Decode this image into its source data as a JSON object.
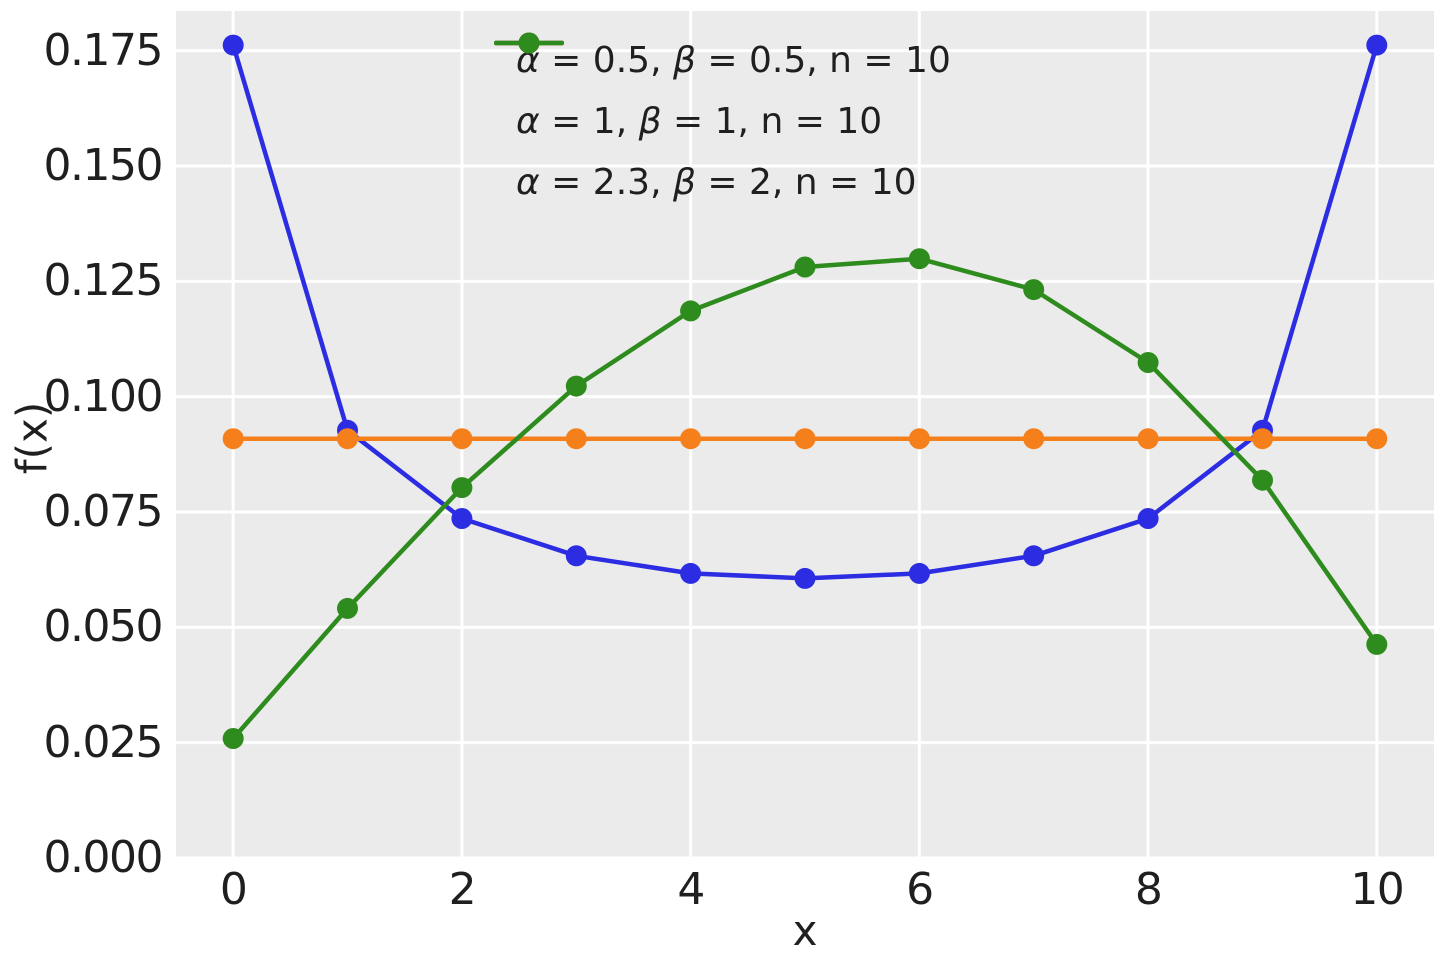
{
  "chart_data": {
    "type": "line",
    "title": "",
    "xlabel": "x",
    "ylabel": "f(x)",
    "x": [
      0,
      1,
      2,
      3,
      4,
      5,
      6,
      7,
      8,
      9,
      10
    ],
    "xlim": [
      -0.5,
      10.5
    ],
    "ylim": [
      0,
      0.1836
    ],
    "grid": true,
    "legend_position": "upper center",
    "marker": "circle",
    "series": [
      {
        "name": "beta-binomial-alpha-0.5-beta-0.5-n-10",
        "alpha": "0.5",
        "beta": "0.5",
        "n": "10",
        "color": "#2c2ce2",
        "values": [
          0.1762,
          0.0927,
          0.0736,
          0.0655,
          0.0617,
          0.0606,
          0.0617,
          0.0655,
          0.0736,
          0.0927,
          0.1762
        ]
      },
      {
        "name": "beta-binomial-alpha-1-beta-1-n-10",
        "alpha": "1",
        "beta": "1",
        "n": "10",
        "color": "#f5801b",
        "values": [
          0.0909,
          0.0909,
          0.0909,
          0.0909,
          0.0909,
          0.0909,
          0.0909,
          0.0909,
          0.0909,
          0.0909,
          0.0909
        ]
      },
      {
        "name": "beta-binomial-alpha-2.3-beta-2-n-10",
        "alpha": "2.3",
        "beta": "2",
        "n": "10",
        "color": "#2e8b1d",
        "values": [
          0.0259,
          0.0541,
          0.0803,
          0.1023,
          0.1186,
          0.1281,
          0.1299,
          0.1232,
          0.1074,
          0.0819,
          0.0463
        ]
      }
    ],
    "xticks": [
      {
        "v": 0,
        "label": "0"
      },
      {
        "v": 2,
        "label": "2"
      },
      {
        "v": 4,
        "label": "4"
      },
      {
        "v": 6,
        "label": "6"
      },
      {
        "v": 8,
        "label": "8"
      },
      {
        "v": 10,
        "label": "10"
      }
    ],
    "yticks": [
      {
        "v": 0.0,
        "label": "0.000"
      },
      {
        "v": 0.025,
        "label": "0.025"
      },
      {
        "v": 0.05,
        "label": "0.050"
      },
      {
        "v": 0.075,
        "label": "0.075"
      },
      {
        "v": 0.1,
        "label": "0.100"
      },
      {
        "v": 0.125,
        "label": "0.125"
      },
      {
        "v": 0.15,
        "label": "0.150"
      },
      {
        "v": 0.175,
        "label": "0.175"
      }
    ],
    "legend_symbols": {
      "alpha": "α",
      "beta": "β",
      "n": "n",
      "eq": " = ",
      "sep": ", "
    },
    "colors": {
      "figure_background": "#ffffff",
      "axes_background": "#ebebeb",
      "gridline": "#ffffff",
      "tick_text": "#1f1f1f"
    }
  }
}
